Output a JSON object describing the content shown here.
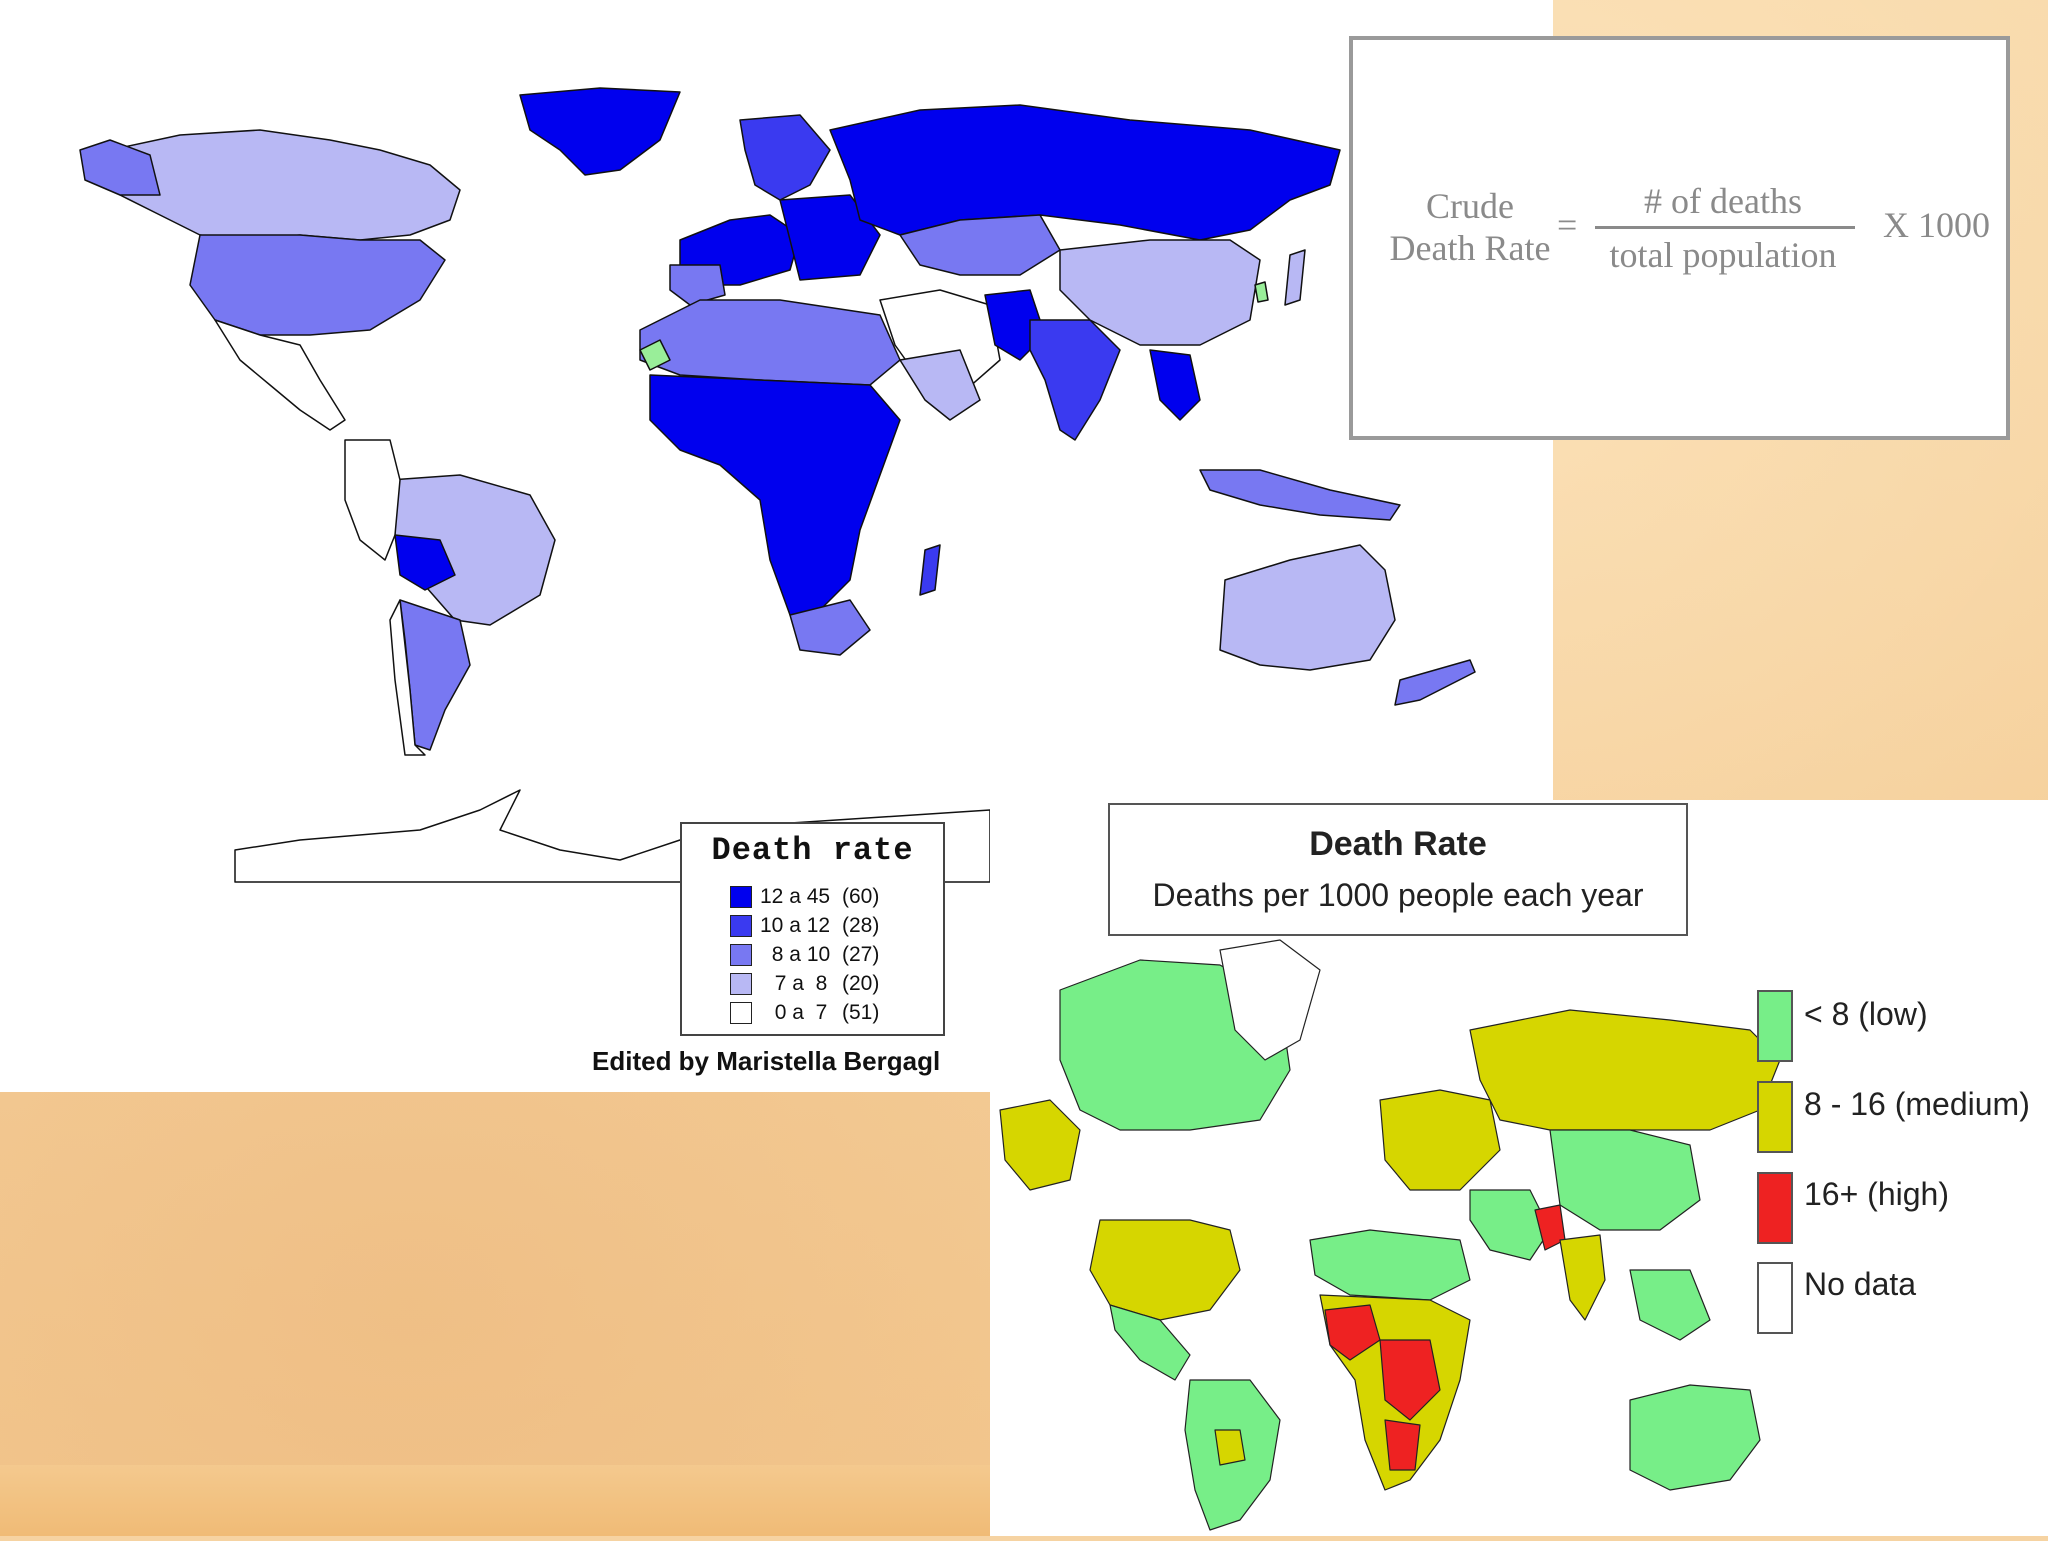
{
  "formula": {
    "left_line1": "Crude",
    "left_line2": "Death Rate",
    "equals": "=",
    "numerator": "# of deaths",
    "denominator": "total population",
    "multiplier": "X 1000"
  },
  "blue_map": {
    "legend_title": "Death rate",
    "legend": [
      {
        "range": "12 a 45",
        "count": "(60)",
        "color": "#0000ee"
      },
      {
        "range": "10 a 12",
        "count": "(28)",
        "color": "#3a3af0"
      },
      {
        "range": "8 a 10",
        "count": "(27)",
        "color": "#7878f2"
      },
      {
        "range": "7 a  8",
        "count": "(20)",
        "color": "#b8b8f4"
      },
      {
        "range": "0 a  7",
        "count": "(51)",
        "color": "#ffffff"
      }
    ],
    "credit": "Edited by Maristella Bergagl"
  },
  "green_map": {
    "title": "Death Rate",
    "subtitle": "Deaths per 1000 people each year",
    "legend": [
      {
        "label": "< 8 (low)",
        "color": "#77ee88"
      },
      {
        "label": "8 - 16 (medium)",
        "color": "#d6d600"
      },
      {
        "label": "16+ (high)",
        "color": "#ee2222"
      },
      {
        "label": "No data",
        "color": "#ffffff"
      }
    ]
  }
}
